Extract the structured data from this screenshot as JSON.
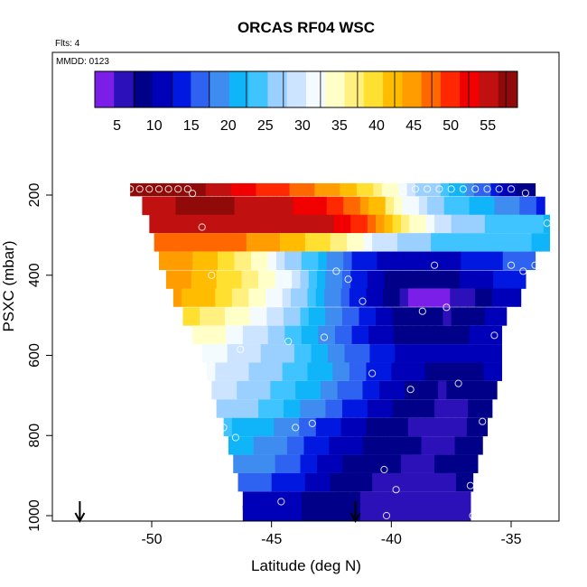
{
  "chart_data": {
    "type": "heatmap",
    "title": "ORCAS RF04 WSC",
    "flights_note": "Flts: 4",
    "date_note": "MMDD: 0123",
    "xlabel": "Latitude (deg N)",
    "ylabel": "PSXC (mbar)",
    "xlim": [
      -54.5,
      -33
    ],
    "ylim": [
      1010,
      0
    ],
    "x_ticks": [
      -50,
      -45,
      -40,
      -35
    ],
    "x_tick_labels": [
      "-50",
      "-45",
      "-40",
      "-35"
    ],
    "y_ticks": [
      200,
      400,
      600,
      800,
      1000
    ],
    "y_tick_labels": [
      "200",
      "400",
      "600",
      "800",
      "1000"
    ],
    "colorbar": {
      "min": 2,
      "max": 59,
      "ticks": [
        5,
        10,
        15,
        20,
        25,
        30,
        35,
        40,
        45,
        50,
        55
      ],
      "tick_labels": [
        "5",
        "10",
        "15",
        "20",
        "25",
        "30",
        "35",
        "40",
        "45",
        "50",
        "55"
      ],
      "colors": [
        "#7a1ee8",
        "#2c10b8",
        "#000088",
        "#0000b8",
        "#0018e0",
        "#2e62f0",
        "#3e8cf0",
        "#10b4f8",
        "#40c4ff",
        "#9ad0ff",
        "#cce4ff",
        "#f4fbff",
        "#ffffc8",
        "#fff080",
        "#ffe030",
        "#ffbc00",
        "#ff9c00",
        "#ff6800",
        "#ff2800",
        "#f00000",
        "#c01010",
        "#900a0a"
      ]
    },
    "rows": [
      {
        "p": 180,
        "x0": -50.9,
        "x1": -34.0,
        "stops": [
          [
            -50.9,
            57
          ],
          [
            -48.0,
            57
          ],
          [
            -46.0,
            52
          ],
          [
            -44.0,
            48
          ],
          [
            -42.0,
            43
          ],
          [
            -40.5,
            37
          ],
          [
            -39.6,
            32
          ],
          [
            -39.0,
            28
          ],
          [
            -38.0,
            25
          ],
          [
            -37.0,
            20
          ],
          [
            -36.0,
            16
          ],
          [
            -35.0,
            10
          ],
          [
            -34.0,
            8
          ]
        ]
      },
      {
        "p": 227,
        "x0": -50.4,
        "x1": -33.6,
        "stops": [
          [
            -50.4,
            56
          ],
          [
            -47.0,
            57
          ],
          [
            -45.0,
            55
          ],
          [
            -43.0,
            52
          ],
          [
            -41.5,
            47
          ],
          [
            -40.5,
            42
          ],
          [
            -40.0,
            37
          ],
          [
            -39.3,
            32
          ],
          [
            -38.5,
            28
          ],
          [
            -37.0,
            23
          ],
          [
            -35.5,
            20
          ],
          [
            -34.0,
            16
          ],
          [
            -33.6,
            14
          ]
        ]
      },
      {
        "p": 272,
        "x0": -50.1,
        "x1": -33.4,
        "stops": [
          [
            -50.1,
            54
          ],
          [
            -48.0,
            55
          ],
          [
            -46.0,
            56
          ],
          [
            -44.0,
            56
          ],
          [
            -42.0,
            53
          ],
          [
            -41.0,
            48
          ],
          [
            -40.0,
            42
          ],
          [
            -39.0,
            35
          ],
          [
            -38.0,
            29
          ],
          [
            -37.0,
            26
          ],
          [
            -35.5,
            25
          ],
          [
            -34.0,
            24
          ],
          [
            -33.4,
            22
          ]
        ]
      },
      {
        "p": 318,
        "x0": -49.9,
        "x1": -33.4,
        "stops": [
          [
            -49.9,
            47
          ],
          [
            -48.0,
            48
          ],
          [
            -46.0,
            46
          ],
          [
            -44.0,
            42
          ],
          [
            -42.5,
            38
          ],
          [
            -41.5,
            34
          ],
          [
            -40.5,
            30
          ],
          [
            -39.5,
            27
          ],
          [
            -38.0,
            25
          ],
          [
            -36.0,
            24
          ],
          [
            -34.5,
            23
          ],
          [
            -33.4,
            22
          ]
        ]
      },
      {
        "p": 364,
        "x0": -49.7,
        "x1": -34.0,
        "stops": [
          [
            -49.7,
            46
          ],
          [
            -48.5,
            44
          ],
          [
            -47.0,
            40
          ],
          [
            -45.5,
            34
          ],
          [
            -44.5,
            29
          ],
          [
            -43.5,
            24
          ],
          [
            -42.5,
            20
          ],
          [
            -41.5,
            15
          ],
          [
            -40.5,
            12
          ],
          [
            -39.5,
            11
          ],
          [
            -38.0,
            11
          ],
          [
            -36.5,
            13
          ],
          [
            -35.5,
            15
          ],
          [
            -34.0,
            17
          ]
        ]
      },
      {
        "p": 411,
        "x0": -49.4,
        "x1": -34.4,
        "stops": [
          [
            -49.4,
            45
          ],
          [
            -48.0,
            43
          ],
          [
            -46.5,
            39
          ],
          [
            -45.0,
            34
          ],
          [
            -44.0,
            29
          ],
          [
            -43.0,
            22
          ],
          [
            -42.0,
            17
          ],
          [
            -41.0,
            12
          ],
          [
            -40.0,
            9
          ],
          [
            -39.0,
            8
          ],
          [
            -37.5,
            9
          ],
          [
            -36.5,
            11
          ],
          [
            -35.5,
            13
          ],
          [
            -34.4,
            14
          ]
        ]
      },
      {
        "p": 456,
        "x0": -49.1,
        "x1": -34.6,
        "stops": [
          [
            -49.1,
            44
          ],
          [
            -47.5,
            41
          ],
          [
            -46.0,
            36
          ],
          [
            -45.0,
            32
          ],
          [
            -44.0,
            27
          ],
          [
            -43.0,
            22
          ],
          [
            -42.0,
            17
          ],
          [
            -41.0,
            12
          ],
          [
            -40.0,
            8
          ],
          [
            -39.0,
            4
          ],
          [
            -38.0,
            4
          ],
          [
            -37.0,
            6
          ],
          [
            -36.0,
            9
          ],
          [
            -34.6,
            12
          ]
        ]
      },
      {
        "p": 503,
        "x0": -48.7,
        "x1": -35.2,
        "stops": [
          [
            -48.7,
            40
          ],
          [
            -47.5,
            37
          ],
          [
            -46.0,
            33
          ],
          [
            -45.0,
            30
          ],
          [
            -44.0,
            26
          ],
          [
            -43.0,
            21
          ],
          [
            -42.0,
            17
          ],
          [
            -41.0,
            13
          ],
          [
            -40.0,
            10
          ],
          [
            -39.0,
            8
          ],
          [
            -37.5,
            7
          ],
          [
            -36.5,
            9
          ],
          [
            -35.2,
            11
          ]
        ]
      },
      {
        "p": 549,
        "x0": -48.3,
        "x1": -35.4,
        "stops": [
          [
            -48.3,
            35
          ],
          [
            -47.0,
            33
          ],
          [
            -46.0,
            30
          ],
          [
            -45.0,
            27
          ],
          [
            -44.0,
            24
          ],
          [
            -43.0,
            20
          ],
          [
            -42.0,
            16
          ],
          [
            -41.0,
            13
          ],
          [
            -40.0,
            10
          ],
          [
            -39.0,
            9
          ],
          [
            -37.5,
            9
          ],
          [
            -36.5,
            10
          ],
          [
            -35.4,
            12
          ]
        ]
      },
      {
        "p": 595,
        "x0": -47.9,
        "x1": -35.4,
        "stops": [
          [
            -47.9,
            32
          ],
          [
            -46.5,
            30
          ],
          [
            -45.0,
            27
          ],
          [
            -44.0,
            25
          ],
          [
            -43.0,
            22
          ],
          [
            -42.0,
            18
          ],
          [
            -41.0,
            15
          ],
          [
            -40.0,
            13
          ],
          [
            -39.0,
            11
          ],
          [
            -38.0,
            10
          ],
          [
            -37.0,
            10
          ],
          [
            -35.4,
            12
          ]
        ]
      },
      {
        "p": 641,
        "x0": -47.7,
        "x1": -35.4,
        "stops": [
          [
            -47.7,
            31
          ],
          [
            -46.5,
            29
          ],
          [
            -45.0,
            26
          ],
          [
            -44.0,
            24
          ],
          [
            -43.0,
            22
          ],
          [
            -42.0,
            19
          ],
          [
            -41.0,
            15
          ],
          [
            -40.0,
            12
          ],
          [
            -39.0,
            10
          ],
          [
            -38.0,
            9
          ],
          [
            -36.5,
            9
          ],
          [
            -35.4,
            11
          ]
        ]
      },
      {
        "p": 687,
        "x0": -47.5,
        "x1": -35.6,
        "stops": [
          [
            -47.5,
            30
          ],
          [
            -46.5,
            28
          ],
          [
            -45.0,
            25
          ],
          [
            -44.0,
            23
          ],
          [
            -43.0,
            20
          ],
          [
            -42.0,
            17
          ],
          [
            -41.0,
            14
          ],
          [
            -40.0,
            11
          ],
          [
            -39.0,
            8
          ],
          [
            -38.0,
            7
          ],
          [
            -37.0,
            8
          ],
          [
            -35.6,
            10
          ]
        ]
      },
      {
        "p": 733,
        "x0": -47.3,
        "x1": -35.8,
        "stops": [
          [
            -47.3,
            27
          ],
          [
            -46.0,
            26
          ],
          [
            -45.0,
            24
          ],
          [
            -44.0,
            21
          ],
          [
            -43.0,
            18
          ],
          [
            -42.0,
            15
          ],
          [
            -41.0,
            12
          ],
          [
            -40.0,
            10
          ],
          [
            -39.0,
            8
          ],
          [
            -38.0,
            7
          ],
          [
            -37.0,
            7
          ],
          [
            -35.8,
            9
          ]
        ]
      },
      {
        "p": 779,
        "x0": -47.0,
        "x1": -36.0,
        "stops": [
          [
            -47.0,
            23
          ],
          [
            -46.0,
            22
          ],
          [
            -45.0,
            20
          ],
          [
            -44.0,
            18
          ],
          [
            -43.0,
            15
          ],
          [
            -42.0,
            12
          ],
          [
            -41.0,
            10
          ],
          [
            -40.0,
            8
          ],
          [
            -39.0,
            7
          ],
          [
            -38.0,
            6
          ],
          [
            -37.0,
            7
          ],
          [
            -36.0,
            8
          ]
        ]
      },
      {
        "p": 825,
        "x0": -46.8,
        "x1": -36.2,
        "stops": [
          [
            -46.8,
            21
          ],
          [
            -45.5,
            20
          ],
          [
            -44.5,
            18
          ],
          [
            -43.5,
            15
          ],
          [
            -42.5,
            12
          ],
          [
            -41.5,
            10
          ],
          [
            -40.5,
            9
          ],
          [
            -39.5,
            8
          ],
          [
            -38.5,
            7
          ],
          [
            -37.5,
            7
          ],
          [
            -36.2,
            8
          ]
        ]
      },
      {
        "p": 871,
        "x0": -46.6,
        "x1": -36.4,
        "stops": [
          [
            -46.6,
            20
          ],
          [
            -45.5,
            19
          ],
          [
            -44.5,
            17
          ],
          [
            -43.5,
            14
          ],
          [
            -42.5,
            11
          ],
          [
            -41.5,
            9
          ],
          [
            -40.5,
            8
          ],
          [
            -39.5,
            7
          ],
          [
            -38.5,
            7
          ],
          [
            -37.5,
            8
          ],
          [
            -36.4,
            9
          ]
        ]
      },
      {
        "p": 917,
        "x0": -46.4,
        "x1": -36.6,
        "stops": [
          [
            -46.4,
            17
          ],
          [
            -45.5,
            16
          ],
          [
            -44.5,
            14
          ],
          [
            -43.5,
            12
          ],
          [
            -42.5,
            10
          ],
          [
            -41.5,
            8
          ],
          [
            -40.5,
            7
          ],
          [
            -39.5,
            5
          ],
          [
            -38.5,
            6
          ],
          [
            -37.5,
            7
          ],
          [
            -36.6,
            8
          ]
        ]
      },
      {
        "p": 963,
        "x0": -46.2,
        "x1": -36.7,
        "stops": [
          [
            -46.2,
            12
          ],
          [
            -45.0,
            11
          ],
          [
            -44.0,
            10
          ],
          [
            -43.0,
            9
          ],
          [
            -42.0,
            8
          ],
          [
            -41.0,
            7
          ],
          [
            -40.0,
            7
          ],
          [
            -39.0,
            6
          ],
          [
            -38.0,
            6
          ],
          [
            -36.7,
            7
          ]
        ]
      },
      {
        "p": 998,
        "x0": -46.2,
        "x1": -36.7,
        "stops": [
          [
            -46.2,
            12
          ],
          [
            -45.0,
            11
          ],
          [
            -44.0,
            10
          ],
          [
            -43.0,
            9
          ],
          [
            -42.0,
            8
          ],
          [
            -41.0,
            7
          ],
          [
            -40.0,
            7
          ],
          [
            -39.0,
            6
          ],
          [
            -38.0,
            6
          ],
          [
            -36.7,
            7
          ]
        ]
      }
    ],
    "row_height": 46,
    "points": [
      [
        -50.9,
        185
      ],
      [
        -50.5,
        185
      ],
      [
        -50.1,
        185
      ],
      [
        -49.7,
        185
      ],
      [
        -49.3,
        185
      ],
      [
        -48.9,
        185
      ],
      [
        -48.5,
        185
      ],
      [
        -48.3,
        196
      ],
      [
        -47.9,
        280
      ],
      [
        -47.5,
        400
      ],
      [
        -46.3,
        585
      ],
      [
        -47.0,
        780
      ],
      [
        -46.5,
        805
      ],
      [
        -46.6,
        985
      ],
      [
        -44.3,
        565
      ],
      [
        -44.0,
        780
      ],
      [
        -43.3,
        770
      ],
      [
        -42.8,
        555
      ],
      [
        -42.3,
        390
      ],
      [
        -41.8,
        410
      ],
      [
        -41.2,
        465
      ],
      [
        -40.8,
        645
      ],
      [
        -40.3,
        885
      ],
      [
        -40.2,
        1000
      ],
      [
        -39.8,
        935
      ],
      [
        -39.2,
        685
      ],
      [
        -39.5,
        190
      ],
      [
        -39.0,
        185
      ],
      [
        -38.5,
        185
      ],
      [
        -38.0,
        185
      ],
      [
        -37.5,
        185
      ],
      [
        -37.0,
        185
      ],
      [
        -36.5,
        185
      ],
      [
        -36.0,
        185
      ],
      [
        -38.7,
        490
      ],
      [
        -37.7,
        480
      ],
      [
        -38.2,
        375
      ],
      [
        -37.2,
        670
      ],
      [
        -36.7,
        925
      ],
      [
        -36.6,
        1000
      ],
      [
        -35.5,
        185
      ],
      [
        -35.0,
        185
      ],
      [
        -34.4,
        195
      ],
      [
        -35.7,
        550
      ],
      [
        -36.2,
        765
      ],
      [
        -35.0,
        375
      ],
      [
        -34.5,
        390
      ],
      [
        -34.0,
        375
      ],
      [
        -33.5,
        270
      ],
      [
        -33.5,
        355
      ],
      [
        -44.6,
        965
      ]
    ],
    "arrows": [
      -53.0,
      -41.5
    ]
  }
}
